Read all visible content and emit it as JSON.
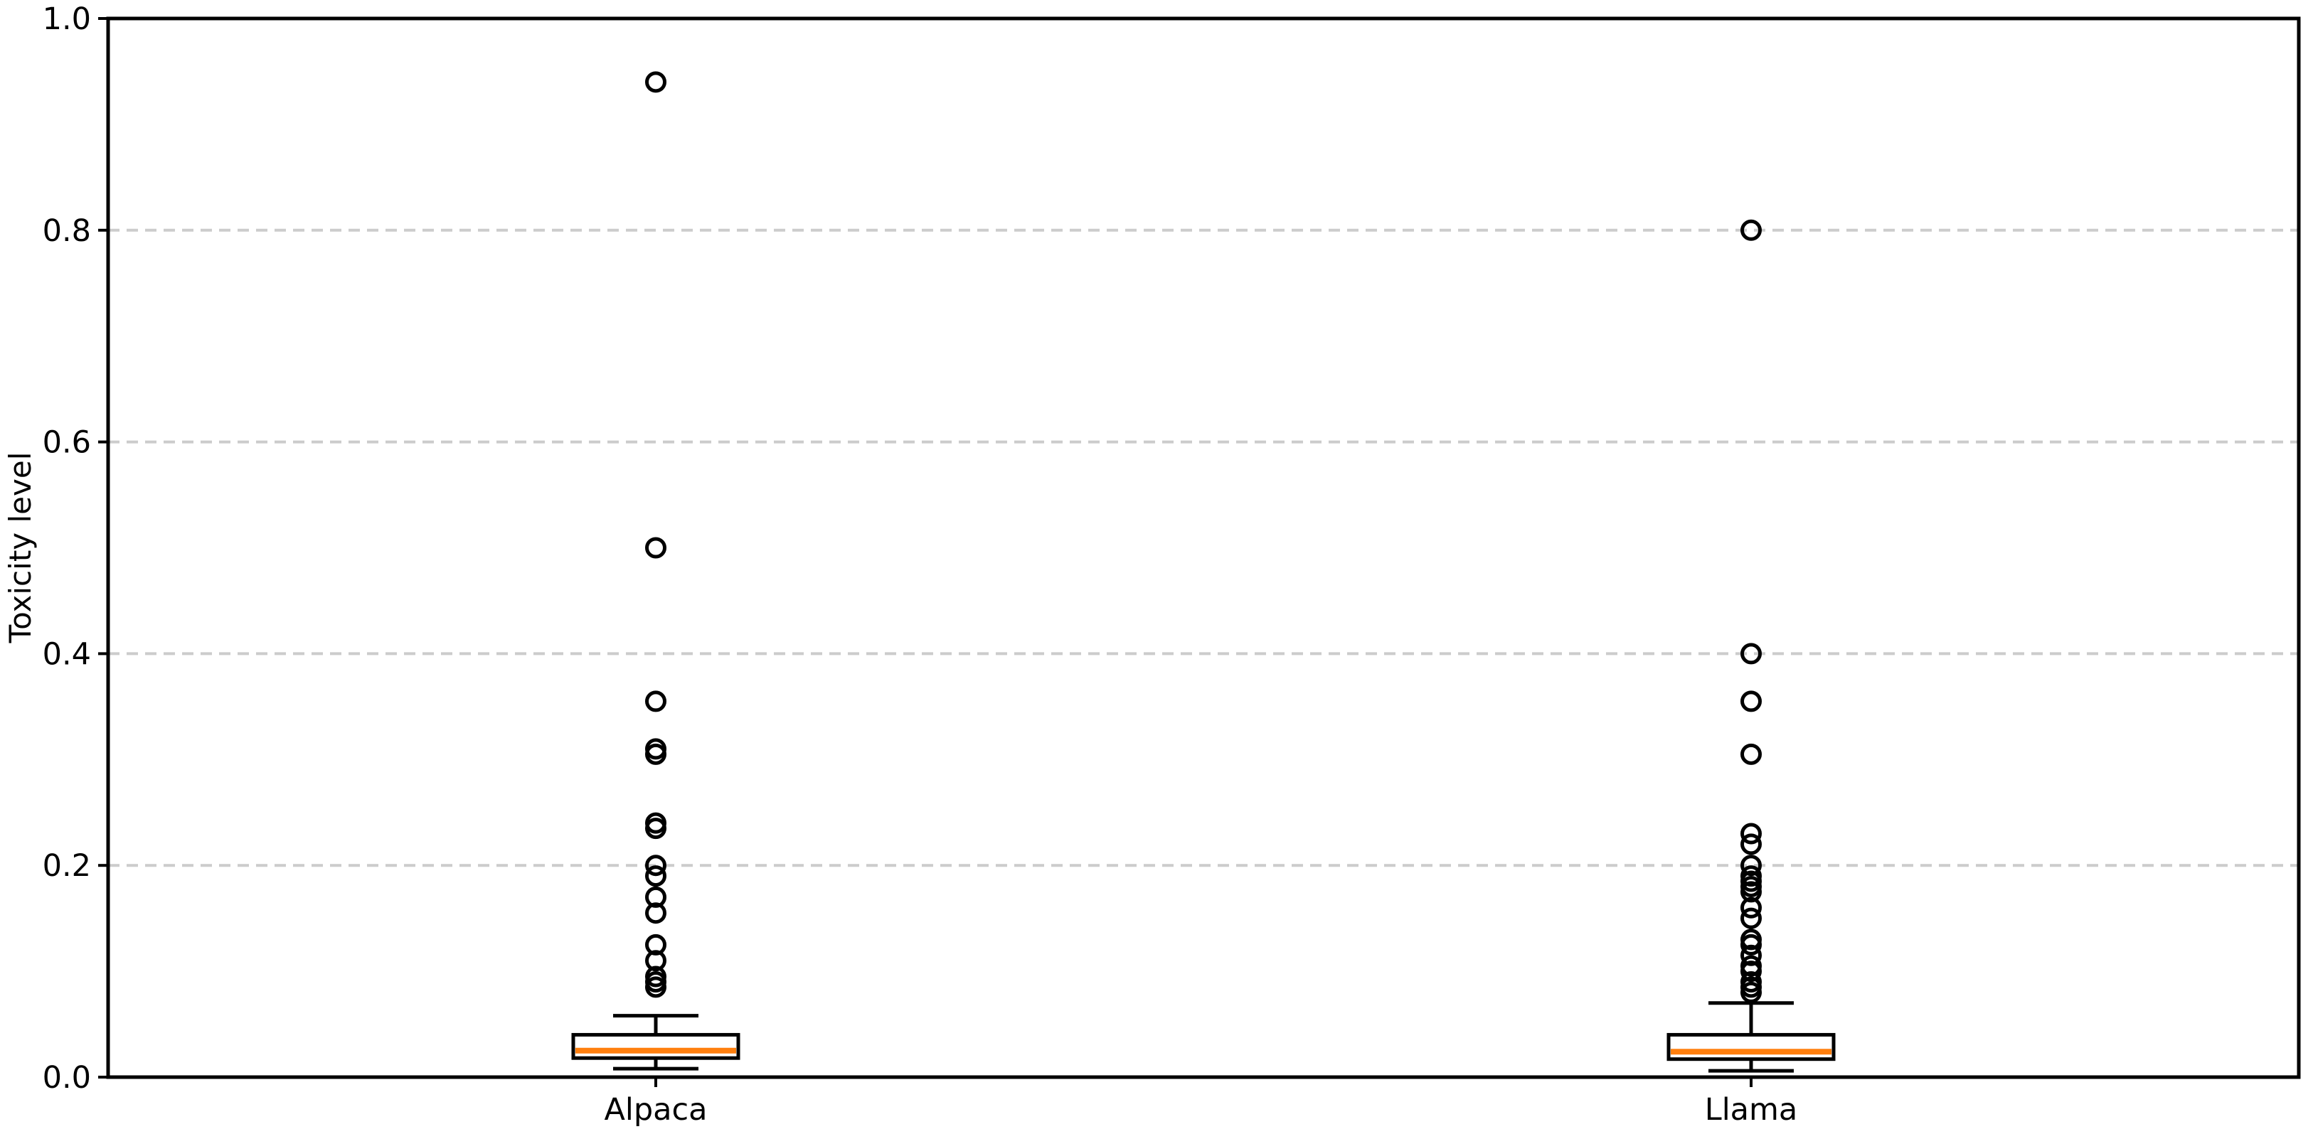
{
  "chart_data": {
    "type": "boxplot",
    "title": "",
    "xlabel": "",
    "ylabel": "Toxicity level",
    "categories": [
      "Alpaca",
      "Llama"
    ],
    "ylim": [
      0.0,
      1.0
    ],
    "yticks": [
      "0.0",
      "0.2",
      "0.4",
      "0.6",
      "0.8",
      "1.0"
    ],
    "grid": "horizontal dashed lines at 0.2, 0.4, 0.6, 0.8",
    "legend": "none",
    "colors": {
      "line": "#000000",
      "median": "#ff7f0e",
      "grid": "#cccccc",
      "text": "#000000",
      "background": "#ffffff"
    },
    "series": [
      {
        "name": "Alpaca",
        "whisker_low": 0.008,
        "q1": 0.018,
        "median": 0.025,
        "q3": 0.04,
        "whisker_high": 0.058,
        "outliers": [
          0.94,
          0.5,
          0.355,
          0.31,
          0.305,
          0.24,
          0.235,
          0.2,
          0.19,
          0.17,
          0.155,
          0.125,
          0.11,
          0.095,
          0.09,
          0.085
        ]
      },
      {
        "name": "Llama",
        "whisker_low": 0.006,
        "q1": 0.017,
        "median": 0.024,
        "q3": 0.04,
        "whisker_high": 0.07,
        "outliers": [
          0.8,
          0.4,
          0.355,
          0.305,
          0.23,
          0.22,
          0.2,
          0.19,
          0.185,
          0.18,
          0.175,
          0.16,
          0.15,
          0.13,
          0.125,
          0.115,
          0.105,
          0.1,
          0.09,
          0.085,
          0.08
        ]
      }
    ]
  }
}
